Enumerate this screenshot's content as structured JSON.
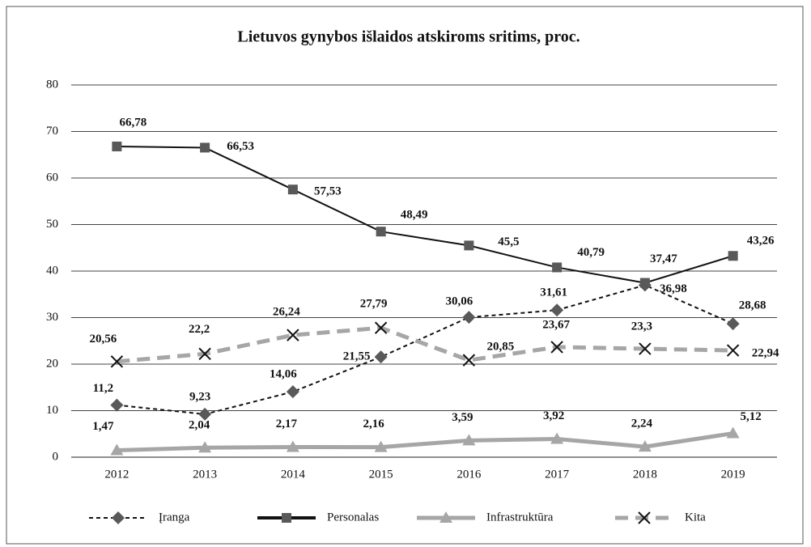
{
  "chart_data": {
    "type": "line",
    "title": "Lietuvos gynybos išlaidos atskiroms sritims, proc.",
    "categories": [
      "2012",
      "2013",
      "2014",
      "2015",
      "2016",
      "2017",
      "2018",
      "2019"
    ],
    "ylim": [
      0,
      80
    ],
    "yticks": [
      0,
      10,
      20,
      30,
      40,
      50,
      60,
      70,
      80
    ],
    "grid": true,
    "legend": "bottom",
    "series": [
      {
        "name": "Įranga",
        "color": "#111111",
        "marker_color": "#595959",
        "marker": "diamond",
        "dashed": true,
        "values": [
          11.2,
          9.23,
          14.06,
          21.55,
          30.06,
          31.61,
          36.98,
          28.68
        ],
        "value_labels": [
          "11,2",
          "9,23",
          "14,06",
          "21,55",
          "30,06",
          "31,61",
          "36,98",
          "28,68"
        ]
      },
      {
        "name": "Personalas",
        "color": "#111111",
        "marker_color": "#595959",
        "marker": "square",
        "dashed": false,
        "values": [
          66.78,
          66.53,
          57.53,
          48.49,
          45.5,
          40.79,
          37.47,
          43.26
        ],
        "value_labels": [
          "66,78",
          "66,53",
          "57,53",
          "48,49",
          "45,5",
          "40,79",
          "37,47",
          "43,26"
        ]
      },
      {
        "name": "Infrastruktūra",
        "color": "#a6a6a6",
        "marker_color": "#a6a6a6",
        "marker": "triangle",
        "dashed": false,
        "values": [
          1.47,
          2.04,
          2.17,
          2.16,
          3.59,
          3.92,
          2.24,
          5.12
        ],
        "value_labels": [
          "1,47",
          "2,04",
          "2,17",
          "2,16",
          "3,59",
          "3,92",
          "2,24",
          "5,12"
        ]
      },
      {
        "name": "Kita",
        "color": "#a6a6a6",
        "marker_color": "#111111",
        "marker": "x",
        "dashed": true,
        "values": [
          20.56,
          22.2,
          26.24,
          27.79,
          20.85,
          23.67,
          23.3,
          22.94
        ],
        "value_labels": [
          "20,56",
          "22,2",
          "26,24",
          "27,79",
          "20,85",
          "23,67",
          "23,3",
          "22,94"
        ]
      }
    ]
  }
}
